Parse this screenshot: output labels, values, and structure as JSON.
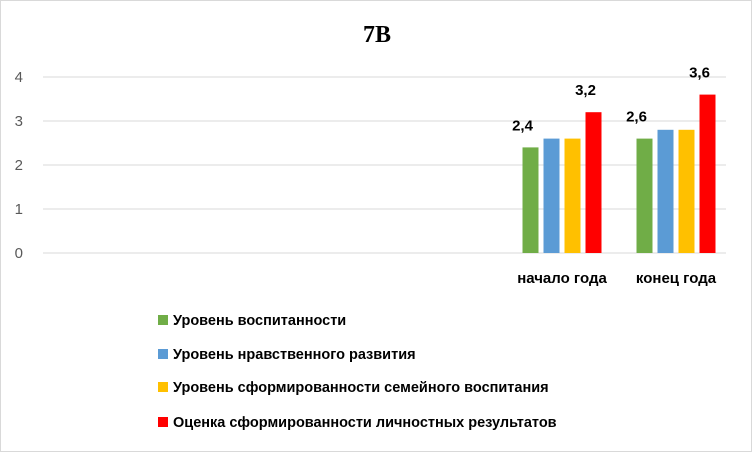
{
  "chart_data": {
    "type": "bar",
    "title": "7В",
    "xlabel": "",
    "ylabel": "",
    "ylim": [
      0,
      4
    ],
    "yticks": [
      "0",
      "1",
      "2",
      "3",
      "4"
    ],
    "grid": true,
    "legend_position": "bottom-left",
    "categories": [
      "начало года",
      "конец года"
    ],
    "series": [
      {
        "name": "Уровень воспитанности",
        "color": "#70ad47",
        "values": [
          2.4,
          2.6
        ],
        "labels": [
          "2,4",
          "2,6"
        ]
      },
      {
        "name": "Уровень нравственного развития",
        "color": "#5b9bd5",
        "values": [
          2.6,
          2.8
        ],
        "labels": [
          "",
          ""
        ]
      },
      {
        "name": "Уровень сформированности семейного воспитания",
        "color": "#ffc000",
        "values": [
          2.6,
          2.8
        ],
        "labels": [
          "",
          ""
        ]
      },
      {
        "name": "Оценка сформированности личностных результатов",
        "color": "#ff0000",
        "values": [
          3.2,
          3.6
        ],
        "labels": [
          "3,2",
          "3,6"
        ]
      }
    ]
  }
}
